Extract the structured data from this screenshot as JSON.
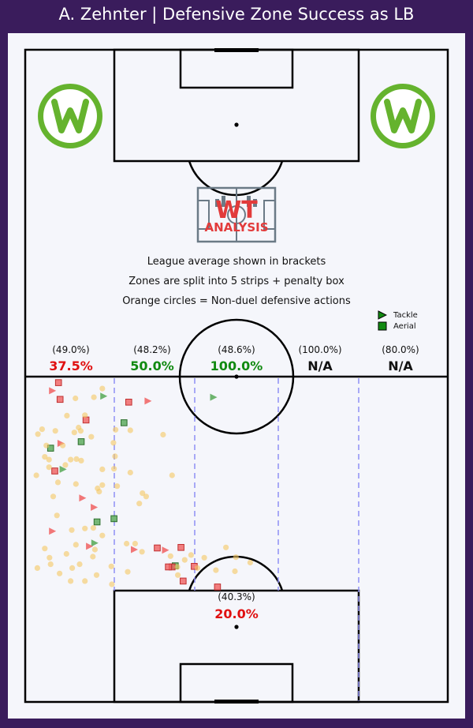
{
  "title": "A. Zehnter | Defensive Zone Success as LB",
  "notes": [
    "League average shown in brackets",
    "Zones are split into 5 strips + penalty box",
    "Orange circles = Non-duel defensive actions"
  ],
  "legend": {
    "tackle": "Tackle",
    "aerial": "Aerial"
  },
  "logo_text": {
    "line1": "WT",
    "line2": "ANALYSIS"
  },
  "colors": {
    "background": "#3a1c5c",
    "panel": "#f5f6fb",
    "success_high": "#118a11",
    "success_low": "#e01010",
    "na": "#111111",
    "tackle_success": "#55a855",
    "tackle_fail": "#f06060",
    "non_duel": "#f5c862",
    "zone_line": "#8f8ff5",
    "club_green": "#65b32e"
  },
  "chart_data": {
    "type": "scatter",
    "zones": [
      {
        "zone": "strip-1",
        "league_avg": "(49.0%)",
        "success": "37.5%",
        "status": "low"
      },
      {
        "zone": "strip-2",
        "league_avg": "(48.2%)",
        "success": "50.0%",
        "status": "high"
      },
      {
        "zone": "strip-3",
        "league_avg": "(48.6%)",
        "success": "100.0%",
        "status": "high"
      },
      {
        "zone": "strip-4",
        "league_avg": "(100.0%)",
        "success": "N/A",
        "status": "na"
      },
      {
        "zone": "strip-5",
        "league_avg": "(80.0%)",
        "success": "N/A",
        "status": "na"
      },
      {
        "zone": "penalty-box",
        "league_avg": "(40.3%)",
        "success": "20.0%",
        "status": "low"
      }
    ],
    "pitch": {
      "width": 80,
      "length": 60
    },
    "series": [
      {
        "name": "Tackle",
        "marker": "triangle",
        "points": [
          [
            5.1,
            2.6,
            0
          ],
          [
            14.8,
            3.6,
            1
          ],
          [
            23.2,
            4.5,
            0
          ],
          [
            35.6,
            3.8,
            1
          ],
          [
            6.7,
            12.3,
            0
          ],
          [
            7.1,
            17.1,
            1
          ],
          [
            10.8,
            22.4,
            0
          ],
          [
            13.0,
            24.1,
            0
          ],
          [
            5.1,
            28.5,
            0
          ],
          [
            13.1,
            30.7,
            1
          ],
          [
            12.1,
            31.3,
            0
          ],
          [
            20.6,
            31.9,
            0
          ],
          [
            26.5,
            32.0,
            0
          ]
        ]
      },
      {
        "name": "Aerial",
        "marker": "square",
        "points": [
          [
            6.3,
            1.1,
            0
          ],
          [
            6.6,
            4.2,
            0
          ],
          [
            19.6,
            4.7,
            0
          ],
          [
            11.5,
            8.0,
            0
          ],
          [
            18.7,
            8.5,
            1
          ],
          [
            10.6,
            12.0,
            1
          ],
          [
            4.8,
            13.2,
            1
          ],
          [
            5.6,
            17.4,
            0
          ],
          [
            16.8,
            26.2,
            1
          ],
          [
            13.6,
            26.8,
            1
          ],
          [
            25.0,
            31.6,
            0
          ],
          [
            29.5,
            31.5,
            0
          ],
          [
            28.4,
            34.9,
            1
          ],
          [
            27.8,
            35.1,
            0
          ],
          [
            27.1,
            35.1,
            0
          ],
          [
            32.0,
            35.0,
            0
          ],
          [
            29.9,
            37.7,
            0
          ],
          [
            36.4,
            38.8,
            0
          ]
        ]
      },
      {
        "name": "Non-duel",
        "marker": "circle",
        "points": [
          [
            14.6,
            2.2
          ],
          [
            13.0,
            3.8
          ],
          [
            9.5,
            4.0
          ],
          [
            7.9,
            7.2
          ],
          [
            11.3,
            7.1
          ],
          [
            10.1,
            9.4
          ],
          [
            3.2,
            9.7
          ],
          [
            5.7,
            10.0
          ],
          [
            2.4,
            10.6
          ],
          [
            9.3,
            10.3
          ],
          [
            10.5,
            10.0
          ],
          [
            12.5,
            11.1
          ],
          [
            4.0,
            12.7
          ],
          [
            7.1,
            12.7
          ],
          [
            3.7,
            14.8
          ],
          [
            9.7,
            15.2
          ],
          [
            4.5,
            15.3
          ],
          [
            8.6,
            15.3
          ],
          [
            10.6,
            15.5
          ],
          [
            7.6,
            16.3
          ],
          [
            4.5,
            16.7
          ],
          [
            2.1,
            18.2
          ],
          [
            14.6,
            17.1
          ],
          [
            17.1,
            9.8
          ],
          [
            16.7,
            12.2
          ],
          [
            19.9,
            9.9
          ],
          [
            26.1,
            10.7
          ],
          [
            17.0,
            14.7
          ],
          [
            16.8,
            17.0
          ],
          [
            19.9,
            17.7
          ],
          [
            27.8,
            18.2
          ],
          [
            6.2,
            19.5
          ],
          [
            9.6,
            19.8
          ],
          [
            13.7,
            20.6
          ],
          [
            14.6,
            20.0
          ],
          [
            14.0,
            21.2
          ],
          [
            5.3,
            22.1
          ],
          [
            17.4,
            20.2
          ],
          [
            22.2,
            21.5
          ],
          [
            22.9,
            22.1
          ],
          [
            21.6,
            23.4
          ],
          [
            6.0,
            25.6
          ],
          [
            11.3,
            28.0
          ],
          [
            12.9,
            27.9
          ],
          [
            8.8,
            28.3
          ],
          [
            14.6,
            29.3
          ],
          [
            9.6,
            31.0
          ],
          [
            13.2,
            31.9
          ],
          [
            7.8,
            32.7
          ],
          [
            3.7,
            31.7
          ],
          [
            4.6,
            33.4
          ],
          [
            4.8,
            34.6
          ],
          [
            10.3,
            34.6
          ],
          [
            12.8,
            33.2
          ],
          [
            19.2,
            30.8
          ],
          [
            20.8,
            30.8
          ],
          [
            22.1,
            32.3
          ],
          [
            27.5,
            33.1
          ],
          [
            30.2,
            33.8
          ],
          [
            31.4,
            32.9
          ],
          [
            39.9,
            33.3
          ],
          [
            38.0,
            31.5
          ],
          [
            16.3,
            35.0
          ],
          [
            2.3,
            35.3
          ],
          [
            8.9,
            35.3
          ],
          [
            6.5,
            36.3
          ],
          [
            13.5,
            36.6
          ],
          [
            11.3,
            37.7
          ],
          [
            8.6,
            37.7
          ],
          [
            19.4,
            36.0
          ],
          [
            16.4,
            38.3
          ],
          [
            28.8,
            35.1
          ],
          [
            33.9,
            33.4
          ],
          [
            36.1,
            35.7
          ],
          [
            42.6,
            34.3
          ],
          [
            39.7,
            35.9
          ],
          [
            28.9,
            36.6
          ],
          [
            32.6,
            35.3
          ]
        ]
      }
    ]
  }
}
